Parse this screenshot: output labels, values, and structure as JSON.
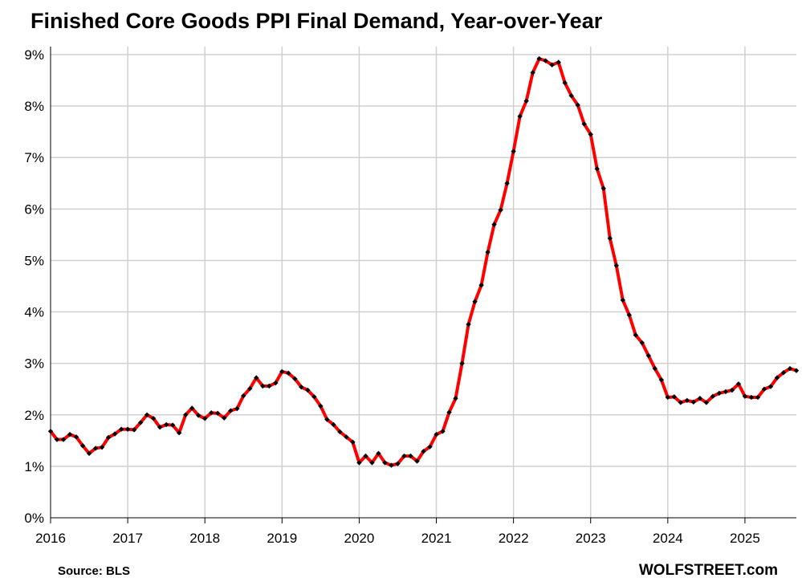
{
  "chart_data": {
    "type": "line",
    "title": "Finished Core Goods PPI Final Demand, Year-over-Year",
    "xlabel": "",
    "ylabel": "",
    "x_start": "2016-01",
    "x_frequency": "monthly",
    "x_ticks": [
      "2016",
      "2017",
      "2018",
      "2019",
      "2020",
      "2021",
      "2022",
      "2023",
      "2024",
      "2025"
    ],
    "xlim": [
      "2016-01",
      "2025-09"
    ],
    "ylim": [
      0,
      9
    ],
    "y_ticks": [
      "0%",
      "1%",
      "2%",
      "3%",
      "4%",
      "5%",
      "6%",
      "7%",
      "8%",
      "9%"
    ],
    "grid": true,
    "legend": "none",
    "series": [
      {
        "name": "",
        "color": "#ff0000",
        "marker_color": "#000000",
        "values": [
          1.68,
          1.52,
          1.52,
          1.62,
          1.57,
          1.4,
          1.25,
          1.35,
          1.37,
          1.56,
          1.63,
          1.72,
          1.72,
          1.71,
          1.85,
          2.0,
          1.93,
          1.76,
          1.81,
          1.8,
          1.65,
          2.0,
          2.13,
          1.99,
          1.93,
          2.04,
          2.03,
          1.94,
          2.08,
          2.12,
          2.37,
          2.51,
          2.72,
          2.56,
          2.56,
          2.62,
          2.84,
          2.81,
          2.7,
          2.54,
          2.48,
          2.35,
          2.17,
          1.91,
          1.81,
          1.67,
          1.57,
          1.47,
          1.07,
          1.2,
          1.07,
          1.25,
          1.07,
          1.02,
          1.05,
          1.2,
          1.2,
          1.1,
          1.29,
          1.38,
          1.62,
          1.68,
          2.05,
          2.32,
          3.0,
          3.76,
          4.2,
          4.52,
          5.16,
          5.7,
          5.98,
          6.5,
          7.12,
          7.8,
          8.1,
          8.65,
          8.92,
          8.88,
          8.8,
          8.85,
          8.45,
          8.2,
          8.02,
          7.65,
          7.45,
          6.78,
          6.4,
          5.43,
          4.9,
          4.23,
          3.94,
          3.55,
          3.4,
          3.15,
          2.9,
          2.68,
          2.34,
          2.35,
          2.24,
          2.28,
          2.25,
          2.32,
          2.24,
          2.36,
          2.42,
          2.45,
          2.48,
          2.6,
          2.36,
          2.34,
          2.34,
          2.5,
          2.55,
          2.72,
          2.82,
          2.9,
          2.86
        ]
      }
    ]
  },
  "footer": {
    "source": "Source: BLS",
    "brand": "WOLFSTREET.com"
  }
}
